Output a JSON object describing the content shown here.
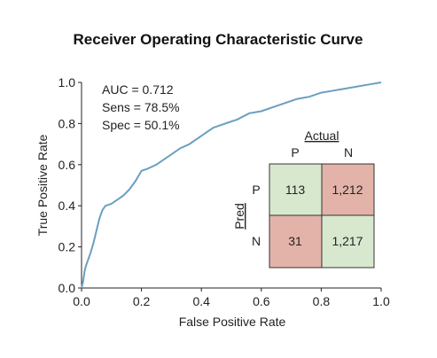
{
  "chart_data": {
    "type": "line",
    "title": "Receiver Operating Characteristic Curve",
    "xlabel": "False Positive Rate",
    "ylabel": "True Positive Rate",
    "xlim": [
      0.0,
      1.0
    ],
    "ylim": [
      0.0,
      1.0
    ],
    "xticks": [
      "0.0",
      "0.2",
      "0.4",
      "0.6",
      "0.8",
      "1.0"
    ],
    "yticks": [
      "0.0",
      "0.2",
      "0.4",
      "0.6",
      "0.8",
      "1.0"
    ],
    "grid": false,
    "line_color": "#6a9fc0",
    "series": [
      {
        "x": [
          0.0,
          0.005,
          0.01,
          0.015,
          0.02,
          0.03,
          0.04,
          0.05,
          0.06,
          0.07,
          0.08,
          0.1,
          0.12,
          0.14,
          0.16,
          0.18,
          0.2,
          0.22,
          0.25,
          0.28,
          0.3,
          0.33,
          0.36,
          0.4,
          0.44,
          0.48,
          0.52,
          0.56,
          0.6,
          0.64,
          0.68,
          0.72,
          0.76,
          0.8,
          0.84,
          0.88,
          0.92,
          0.96,
          1.0
        ],
        "y": [
          0.0,
          0.03,
          0.08,
          0.11,
          0.13,
          0.17,
          0.22,
          0.28,
          0.34,
          0.38,
          0.4,
          0.41,
          0.43,
          0.45,
          0.48,
          0.52,
          0.57,
          0.58,
          0.6,
          0.63,
          0.65,
          0.68,
          0.7,
          0.74,
          0.78,
          0.8,
          0.82,
          0.85,
          0.86,
          0.88,
          0.9,
          0.92,
          0.93,
          0.95,
          0.96,
          0.97,
          0.98,
          0.99,
          1.0
        ]
      }
    ],
    "annotations": [
      "AUC = 0.712",
      "Sens = 78.5%",
      "Spec = 50.1%"
    ],
    "confusion_matrix": {
      "actual_label": "Actual",
      "pred_label": "Pred",
      "col_labels": [
        "P",
        "N"
      ],
      "row_labels": [
        "P",
        "N"
      ],
      "cells": [
        [
          "113",
          "1,212"
        ],
        [
          "31",
          "1,217"
        ]
      ],
      "cell_colors": [
        [
          "#d8e8cf",
          "#e3b3a9"
        ],
        [
          "#e3b3a9",
          "#d8e8cf"
        ]
      ]
    }
  }
}
